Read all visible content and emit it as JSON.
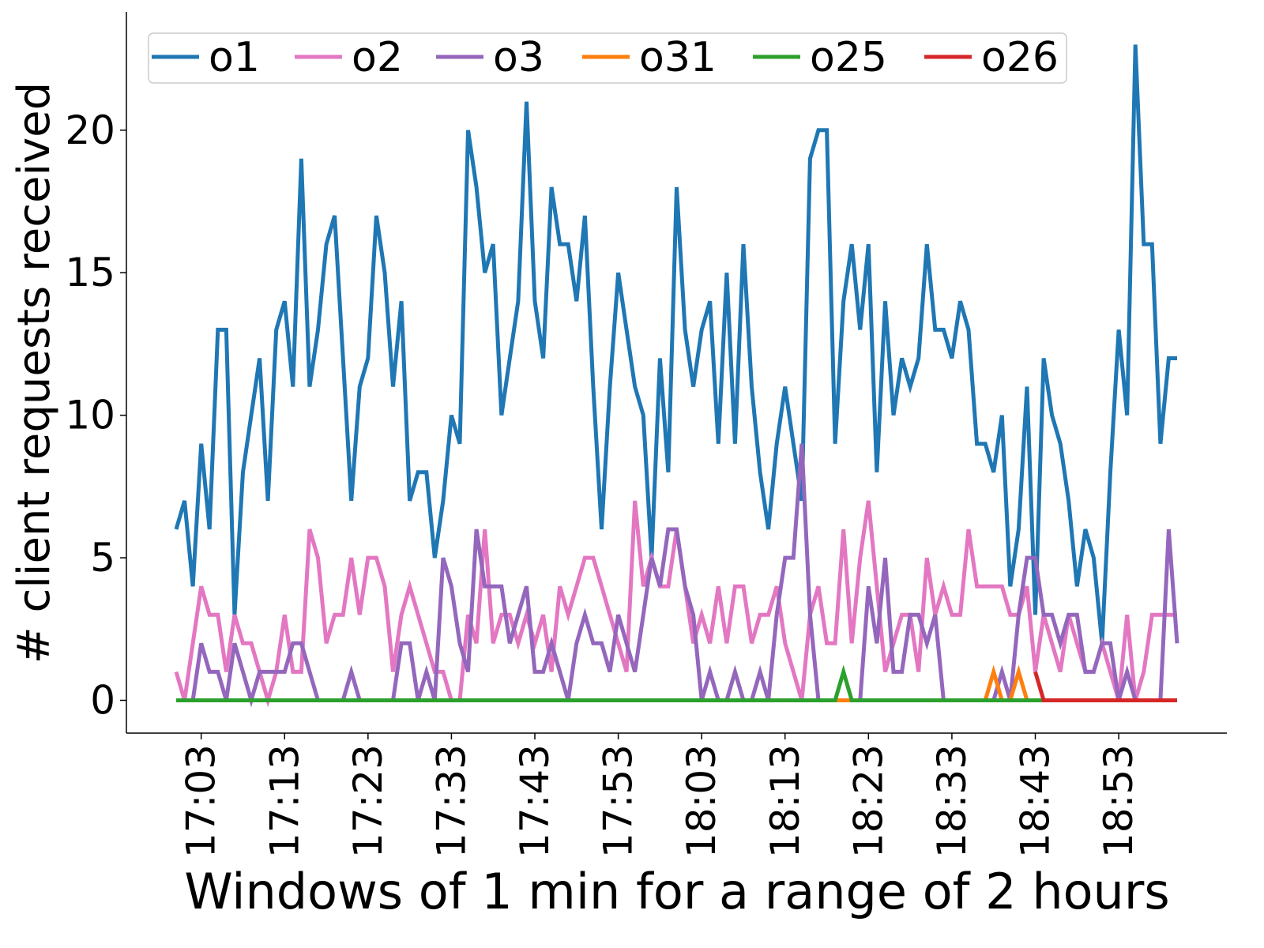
{
  "chart_data": {
    "type": "line",
    "x_label": "Windows of 1 min for a range of 2 hours",
    "y_label": "# client requests received",
    "categories": [
      null,
      null,
      null,
      "17:03",
      null,
      null,
      null,
      null,
      null,
      null,
      null,
      null,
      null,
      "17:13",
      null,
      null,
      null,
      null,
      null,
      null,
      null,
      null,
      null,
      "17:23",
      null,
      null,
      null,
      null,
      null,
      null,
      null,
      null,
      null,
      "17:33",
      null,
      null,
      null,
      null,
      null,
      null,
      null,
      null,
      null,
      "17:43",
      null,
      null,
      null,
      null,
      null,
      null,
      null,
      null,
      null,
      "17:53",
      null,
      null,
      null,
      null,
      null,
      null,
      null,
      null,
      null,
      "18:03",
      null,
      null,
      null,
      null,
      null,
      null,
      null,
      null,
      null,
      "18:13",
      null,
      null,
      null,
      null,
      null,
      null,
      null,
      null,
      null,
      "18:23",
      null,
      null,
      null,
      null,
      null,
      null,
      null,
      null,
      null,
      "18:33",
      null,
      null,
      null,
      null,
      null,
      null,
      null,
      null,
      null,
      "18:43",
      null,
      null,
      null,
      null,
      null,
      null,
      null,
      null,
      null,
      "18:53",
      null,
      null,
      null,
      null,
      null,
      null,
      null
    ],
    "series": [
      {
        "name": "o1",
        "color": "#1f77b4",
        "values": [
          6,
          7,
          4,
          9,
          6,
          13,
          13,
          3,
          8,
          10,
          12,
          7,
          13,
          14,
          11,
          19,
          11,
          13,
          16,
          17,
          12,
          7,
          11,
          12,
          17,
          15,
          11,
          14,
          7,
          8,
          8,
          5,
          7,
          10,
          9,
          20,
          18,
          15,
          16,
          10,
          12,
          14,
          21,
          14,
          12,
          18,
          16,
          16,
          14,
          17,
          11,
          6,
          11,
          15,
          13,
          11,
          10,
          5,
          12,
          8,
          18,
          13,
          11,
          13,
          14,
          9,
          15,
          9,
          16,
          11,
          8,
          6,
          9,
          11,
          9,
          7,
          19,
          20,
          20,
          9,
          14,
          16,
          13,
          16,
          8,
          14,
          10,
          12,
          11,
          12,
          16,
          13,
          13,
          12,
          14,
          13,
          9,
          9,
          8,
          10,
          4,
          6,
          11,
          3,
          12,
          10,
          9,
          7,
          4,
          6,
          5,
          2,
          8,
          13,
          10,
          23,
          16,
          16,
          9,
          12,
          12
        ]
      },
      {
        "name": "o2",
        "color": "#e377c2",
        "values": [
          1,
          0,
          2,
          4,
          3,
          3,
          1,
          3,
          2,
          2,
          1,
          0,
          1,
          3,
          1,
          1,
          6,
          5,
          2,
          3,
          3,
          5,
          3,
          5,
          5,
          4,
          1,
          3,
          4,
          3,
          2,
          1,
          1,
          0,
          0,
          3,
          2,
          6,
          2,
          3,
          3,
          2,
          3,
          2,
          3,
          1,
          4,
          3,
          4,
          5,
          5,
          4,
          3,
          2,
          1,
          7,
          4,
          5,
          4,
          4,
          6,
          4,
          2,
          3,
          2,
          4,
          2,
          4,
          4,
          2,
          3,
          3,
          4,
          2,
          1,
          0,
          3,
          4,
          2,
          2,
          6,
          2,
          5,
          7,
          4,
          1,
          2,
          3,
          3,
          1,
          5,
          3,
          4,
          3,
          3,
          6,
          4,
          4,
          4,
          4,
          3,
          3,
          4,
          1,
          3,
          2,
          1,
          3,
          2,
          1,
          1,
          2,
          1,
          0,
          3,
          0,
          1,
          3,
          3,
          3,
          3
        ]
      },
      {
        "name": "o3",
        "color": "#9467bd",
        "values": [
          0,
          0,
          0,
          2,
          1,
          1,
          0,
          2,
          1,
          0,
          1,
          1,
          1,
          1,
          2,
          2,
          1,
          0,
          0,
          0,
          0,
          1,
          0,
          0,
          0,
          0,
          0,
          2,
          2,
          0,
          1,
          0,
          5,
          4,
          2,
          1,
          6,
          4,
          4,
          4,
          2,
          3,
          4,
          1,
          1,
          2,
          1,
          0,
          2,
          3,
          2,
          2,
          1,
          3,
          2,
          1,
          3,
          5,
          4,
          6,
          6,
          4,
          3,
          0,
          1,
          0,
          0,
          1,
          0,
          0,
          1,
          0,
          3,
          5,
          5,
          9,
          3,
          0,
          0,
          0,
          0,
          0,
          0,
          4,
          2,
          5,
          1,
          1,
          3,
          3,
          2,
          3,
          0,
          0,
          0,
          0,
          0,
          0,
          0,
          1,
          0,
          3,
          5,
          5,
          3,
          3,
          2,
          3,
          3,
          1,
          1,
          2,
          2,
          0,
          1,
          0,
          0,
          0,
          0,
          6,
          2
        ]
      },
      {
        "name": "o31",
        "color": "#ff7f0e",
        "values": [
          0,
          0,
          0,
          0,
          0,
          0,
          0,
          0,
          0,
          0,
          0,
          0,
          0,
          0,
          0,
          0,
          0,
          0,
          0,
          0,
          0,
          0,
          0,
          0,
          0,
          0,
          0,
          0,
          0,
          0,
          0,
          0,
          0,
          0,
          0,
          0,
          0,
          0,
          0,
          0,
          0,
          0,
          0,
          0,
          0,
          0,
          0,
          0,
          0,
          0,
          0,
          0,
          0,
          0,
          0,
          0,
          0,
          0,
          0,
          0,
          0,
          0,
          0,
          0,
          0,
          0,
          0,
          0,
          0,
          0,
          0,
          0,
          0,
          0,
          0,
          0,
          0,
          0,
          0,
          0,
          0,
          0,
          0,
          0,
          0,
          0,
          0,
          0,
          0,
          0,
          0,
          0,
          0,
          0,
          0,
          0,
          0,
          0,
          1,
          0,
          0,
          1,
          0,
          0,
          null,
          null,
          null,
          null,
          null,
          null,
          null,
          null,
          null,
          null,
          null,
          null,
          null,
          null,
          null,
          null,
          null
        ]
      },
      {
        "name": "o25",
        "color": "#2ca02c",
        "values": [
          0,
          0,
          0,
          0,
          0,
          0,
          0,
          0,
          0,
          0,
          0,
          0,
          0,
          0,
          0,
          0,
          0,
          0,
          0,
          0,
          0,
          0,
          0,
          0,
          0,
          0,
          0,
          0,
          0,
          0,
          0,
          0,
          0,
          0,
          0,
          0,
          0,
          0,
          0,
          0,
          0,
          0,
          0,
          0,
          0,
          0,
          0,
          0,
          0,
          0,
          0,
          0,
          0,
          0,
          0,
          0,
          0,
          0,
          0,
          0,
          0,
          0,
          0,
          0,
          0,
          0,
          0,
          0,
          0,
          0,
          0,
          0,
          0,
          0,
          0,
          0,
          0,
          0,
          0,
          0,
          1,
          0,
          0,
          0,
          0,
          0,
          0,
          0,
          0,
          0,
          0,
          0,
          0,
          0,
          0,
          0,
          0,
          0,
          0,
          0,
          0,
          0,
          0,
          0,
          0,
          null,
          null,
          null,
          null,
          null,
          null,
          null,
          null,
          null,
          null,
          null,
          null,
          null,
          null,
          null,
          null
        ]
      },
      {
        "name": "o26",
        "color": "#d62728",
        "values": [
          null,
          null,
          null,
          null,
          null,
          null,
          null,
          null,
          null,
          null,
          null,
          null,
          null,
          null,
          null,
          null,
          null,
          null,
          null,
          null,
          null,
          null,
          null,
          null,
          null,
          null,
          null,
          null,
          null,
          null,
          null,
          null,
          null,
          null,
          null,
          null,
          null,
          null,
          null,
          null,
          null,
          null,
          null,
          null,
          null,
          null,
          null,
          null,
          null,
          null,
          null,
          null,
          null,
          null,
          null,
          null,
          null,
          null,
          null,
          null,
          null,
          null,
          null,
          null,
          null,
          null,
          null,
          null,
          null,
          null,
          null,
          null,
          null,
          null,
          null,
          null,
          null,
          null,
          null,
          null,
          null,
          null,
          null,
          null,
          null,
          null,
          null,
          null,
          null,
          null,
          null,
          null,
          null,
          null,
          null,
          null,
          null,
          null,
          null,
          null,
          null,
          null,
          null,
          1,
          0,
          0,
          0,
          0,
          0,
          0,
          0,
          0,
          0,
          0,
          0,
          0,
          0,
          0,
          0,
          0,
          0
        ]
      }
    ],
    "ylim": [
      -1.15,
      24.15
    ],
    "yticks": [
      0,
      5,
      10,
      15,
      20
    ],
    "grid": false,
    "legend": "top"
  }
}
